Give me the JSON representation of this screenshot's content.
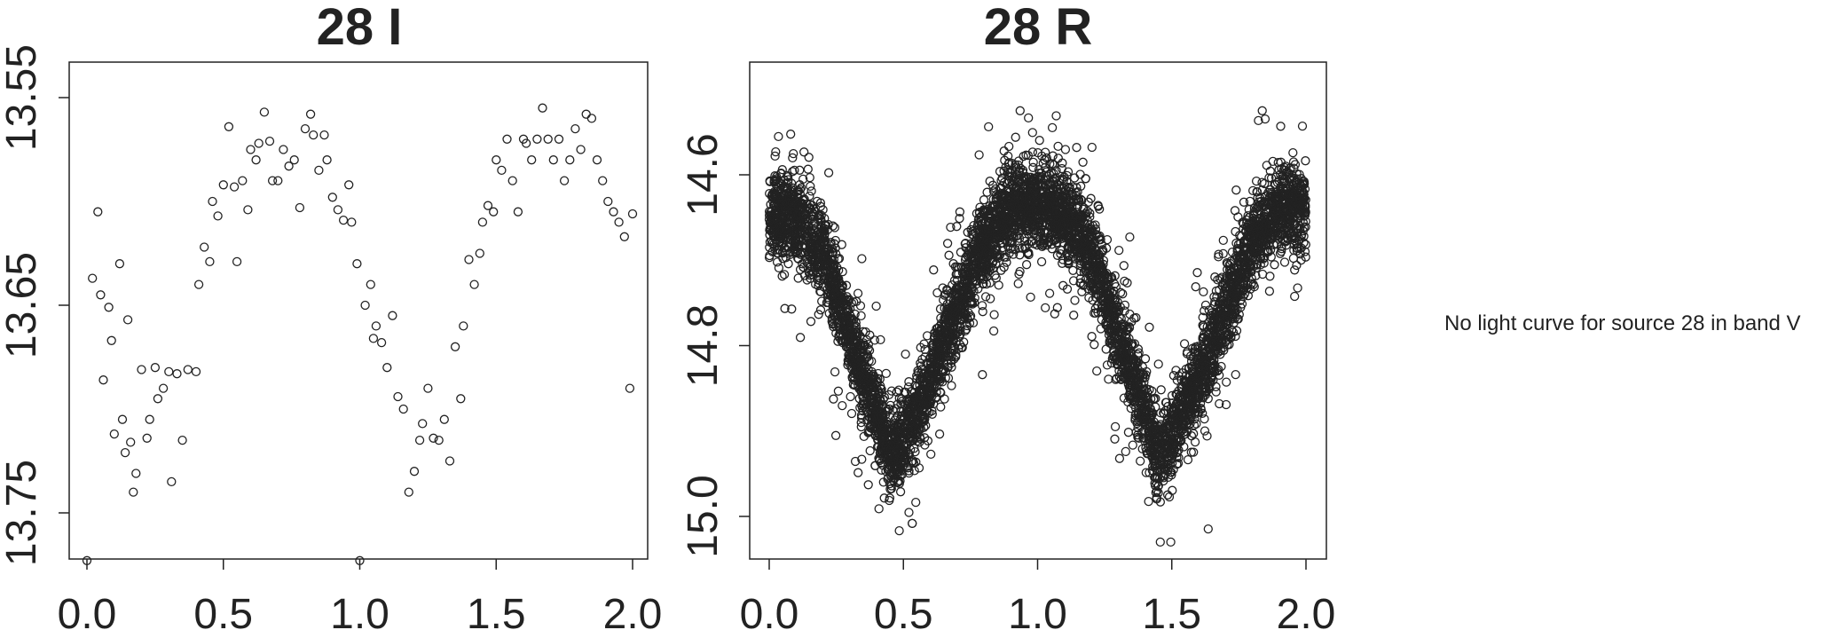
{
  "figure": {
    "ink_color": "#222222",
    "background": "#ffffff"
  },
  "chart_data": [
    {
      "type": "scatter",
      "title": "28 I",
      "xlabel": "",
      "ylabel": "",
      "xlim": [
        0.0,
        2.0
      ],
      "ylim": [
        13.55,
        13.77
      ],
      "y_reversed": true,
      "x_ticks": [
        "0.0",
        "0.5",
        "1.0",
        "1.5",
        "2.0"
      ],
      "y_ticks": [
        "13.55",
        "13.65",
        "13.75"
      ],
      "grid": false,
      "marker": "open-circle",
      "points": [
        [
          0.0,
          13.773
        ],
        [
          0.02,
          13.637
        ],
        [
          0.04,
          13.605
        ],
        [
          0.05,
          13.645
        ],
        [
          0.06,
          13.686
        ],
        [
          0.08,
          13.651
        ],
        [
          0.09,
          13.667
        ],
        [
          0.1,
          13.712
        ],
        [
          0.12,
          13.63
        ],
        [
          0.13,
          13.705
        ],
        [
          0.14,
          13.721
        ],
        [
          0.15,
          13.657
        ],
        [
          0.16,
          13.716
        ],
        [
          0.17,
          13.74
        ],
        [
          0.18,
          13.731
        ],
        [
          0.2,
          13.681
        ],
        [
          0.22,
          13.714
        ],
        [
          0.23,
          13.705
        ],
        [
          0.25,
          13.68
        ],
        [
          0.26,
          13.695
        ],
        [
          0.28,
          13.69
        ],
        [
          0.3,
          13.682
        ],
        [
          0.31,
          13.735
        ],
        [
          0.33,
          13.683
        ],
        [
          0.35,
          13.715
        ],
        [
          0.37,
          13.681
        ],
        [
          0.4,
          13.682
        ],
        [
          0.41,
          13.64
        ],
        [
          0.43,
          13.622
        ],
        [
          0.45,
          13.629
        ],
        [
          0.46,
          13.6
        ],
        [
          0.48,
          13.607
        ],
        [
          0.5,
          13.592
        ],
        [
          0.52,
          13.564
        ],
        [
          0.54,
          13.593
        ],
        [
          0.55,
          13.629
        ],
        [
          0.57,
          13.59
        ],
        [
          0.59,
          13.604
        ],
        [
          0.6,
          13.575
        ],
        [
          0.62,
          13.58
        ],
        [
          0.63,
          13.572
        ],
        [
          0.65,
          13.557
        ],
        [
          0.67,
          13.571
        ],
        [
          0.68,
          13.59
        ],
        [
          0.7,
          13.59
        ],
        [
          0.72,
          13.575
        ],
        [
          0.74,
          13.583
        ],
        [
          0.76,
          13.58
        ],
        [
          0.78,
          13.603
        ],
        [
          0.8,
          13.565
        ],
        [
          0.82,
          13.558
        ],
        [
          0.83,
          13.568
        ],
        [
          0.85,
          13.585
        ],
        [
          0.87,
          13.568
        ],
        [
          0.88,
          13.58
        ],
        [
          0.9,
          13.598
        ],
        [
          0.92,
          13.604
        ],
        [
          0.94,
          13.609
        ],
        [
          0.96,
          13.592
        ],
        [
          0.97,
          13.61
        ],
        [
          0.99,
          13.63
        ],
        [
          1.0,
          13.773
        ],
        [
          1.02,
          13.65
        ],
        [
          1.04,
          13.64
        ],
        [
          1.05,
          13.666
        ],
        [
          1.06,
          13.66
        ],
        [
          1.08,
          13.668
        ],
        [
          1.1,
          13.68
        ],
        [
          1.12,
          13.655
        ],
        [
          1.14,
          13.694
        ],
        [
          1.16,
          13.7
        ],
        [
          1.18,
          13.74
        ],
        [
          1.2,
          13.73
        ],
        [
          1.22,
          13.715
        ],
        [
          1.23,
          13.707
        ],
        [
          1.25,
          13.69
        ],
        [
          1.27,
          13.714
        ],
        [
          1.29,
          13.715
        ],
        [
          1.31,
          13.705
        ],
        [
          1.33,
          13.725
        ],
        [
          1.35,
          13.67
        ],
        [
          1.37,
          13.695
        ],
        [
          1.38,
          13.66
        ],
        [
          1.4,
          13.628
        ],
        [
          1.42,
          13.64
        ],
        [
          1.44,
          13.625
        ],
        [
          1.45,
          13.61
        ],
        [
          1.47,
          13.602
        ],
        [
          1.49,
          13.605
        ],
        [
          1.5,
          13.58
        ],
        [
          1.52,
          13.585
        ],
        [
          1.54,
          13.57
        ],
        [
          1.56,
          13.59
        ],
        [
          1.58,
          13.605
        ],
        [
          1.6,
          13.57
        ],
        [
          1.61,
          13.572
        ],
        [
          1.63,
          13.58
        ],
        [
          1.65,
          13.57
        ],
        [
          1.67,
          13.555
        ],
        [
          1.69,
          13.57
        ],
        [
          1.71,
          13.58
        ],
        [
          1.73,
          13.57
        ],
        [
          1.75,
          13.59
        ],
        [
          1.77,
          13.58
        ],
        [
          1.79,
          13.565
        ],
        [
          1.81,
          13.575
        ],
        [
          1.83,
          13.558
        ],
        [
          1.85,
          13.56
        ],
        [
          1.87,
          13.58
        ],
        [
          1.89,
          13.59
        ],
        [
          1.91,
          13.6
        ],
        [
          1.93,
          13.605
        ],
        [
          1.95,
          13.61
        ],
        [
          1.97,
          13.617
        ],
        [
          1.99,
          13.69
        ],
        [
          2.0,
          13.606
        ]
      ]
    },
    {
      "type": "scatter",
      "title": "28 R",
      "xlabel": "",
      "ylabel": "",
      "xlim": [
        0.0,
        2.0
      ],
      "ylim": [
        14.525,
        15.03
      ],
      "y_reversed": true,
      "x_ticks": [
        "0.0",
        "0.5",
        "1.0",
        "1.5",
        "2.0"
      ],
      "y_ticks": [
        "14.6",
        "14.8",
        "15.0"
      ],
      "grid": false,
      "marker": "open-circle",
      "dense_band": {
        "phase": [
          0.0,
          0.1,
          0.2,
          0.3,
          0.4,
          0.45,
          0.5,
          0.6,
          0.7,
          0.8,
          0.9,
          1.0,
          1.1,
          1.2,
          1.3,
          1.4,
          1.45,
          1.5,
          1.6,
          1.7,
          1.8,
          1.9,
          2.0
        ],
        "center_magnitude": [
          14.65,
          14.65,
          14.69,
          14.79,
          14.88,
          14.93,
          14.91,
          14.84,
          14.76,
          14.68,
          14.64,
          14.63,
          14.65,
          14.69,
          14.79,
          14.88,
          14.93,
          14.91,
          14.84,
          14.76,
          14.68,
          14.64,
          14.64
        ],
        "scatter_magnitude": 0.035,
        "observation_count": 6000
      }
    }
  ],
  "message": {
    "text": "No light curve for source 28 in band V"
  }
}
